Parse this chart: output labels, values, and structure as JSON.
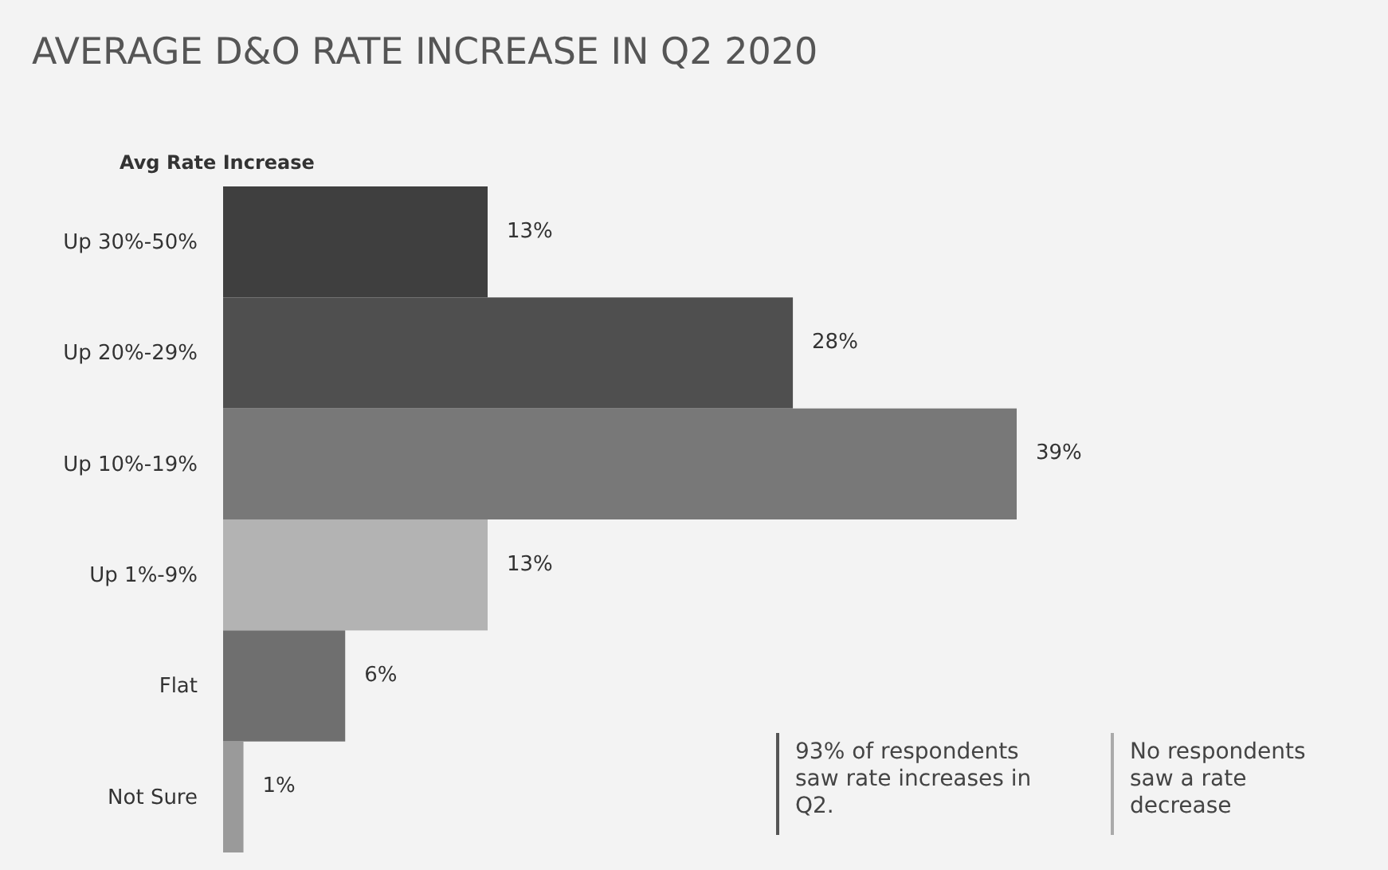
{
  "chart_data": {
    "type": "bar",
    "orientation": "horizontal",
    "title": "AVERAGE D&O RATE INCREASE IN Q2 2020",
    "ylabel": "Avg Rate Increase",
    "categories": [
      "Up 30%-50%",
      "Up 20%-29%",
      "Up 10%-19%",
      "Up 1%-9%",
      "Flat",
      "Not Sure"
    ],
    "values": [
      13,
      28,
      39,
      13,
      6,
      1
    ],
    "colors": [
      "#3f3f3f",
      "#4f4f4f",
      "#787878",
      "#b3b3b3",
      "#6f6f6f",
      "#9a9a9a"
    ],
    "value_labels": [
      "13%",
      "28%",
      "39%",
      "13%",
      "6%",
      "1%"
    ],
    "tick_labels": "y",
    "annotations": [
      "93% of respondents saw rate increases in Q2.",
      "No respondents saw a rate decrease"
    ]
  }
}
